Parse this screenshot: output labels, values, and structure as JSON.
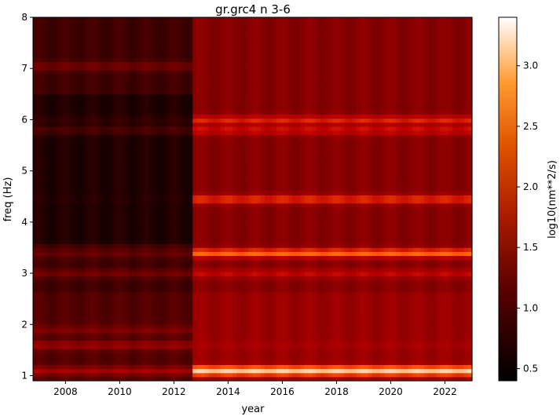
{
  "chart_data": {
    "type": "heatmap",
    "title": "gr.grc4 n 3-6",
    "xlabel": "year",
    "ylabel": "freq (Hz)",
    "xlim": [
      2006.8,
      2023.0
    ],
    "ylim": [
      0.9,
      8.0
    ],
    "x_ticks": [
      2008,
      2010,
      2012,
      2014,
      2016,
      2018,
      2020,
      2022
    ],
    "x_tick_labels": [
      "2008",
      "2010",
      "2012",
      "2014",
      "2016",
      "2018",
      "2020",
      "2022"
    ],
    "y_ticks": [
      1,
      2,
      3,
      4,
      5,
      6,
      7,
      8
    ],
    "y_tick_labels": [
      "1",
      "2",
      "3",
      "4",
      "5",
      "6",
      "7",
      "8"
    ],
    "colorbar": {
      "label": "log10(nm**2/s)",
      "range": [
        0.4,
        3.4
      ],
      "ticks": [
        0.5,
        1.0,
        1.5,
        2.0,
        2.5,
        3.0
      ],
      "tick_labels": [
        "0.5",
        "1.0",
        "1.5",
        "2.0",
        "2.5",
        "3.0"
      ],
      "colormap": "gist_heat"
    },
    "regime_change_year": 2012.7,
    "background_level_before": 0.9,
    "background_level_after": 1.45,
    "bands": [
      {
        "freq": 1.1,
        "level_before": 1.7,
        "level_after": 3.1
      },
      {
        "freq": 1.6,
        "level_before": 1.6,
        "level_after": 1.7
      },
      {
        "freq": 1.9,
        "level_before": 1.4,
        "level_after": 1.5
      },
      {
        "freq": 3.0,
        "level_before": 1.3,
        "level_after": 1.9
      },
      {
        "freq": 3.4,
        "level_before": 1.2,
        "level_after": 2.5
      },
      {
        "freq": 4.45,
        "level_before": 0.7,
        "level_after": 2.2
      },
      {
        "freq": 5.8,
        "level_before": 1.0,
        "level_after": 2.0
      },
      {
        "freq": 6.0,
        "level_before": 0.8,
        "level_after": 2.1
      },
      {
        "freq": 7.05,
        "level_before": 1.3,
        "level_after": 1.3
      }
    ]
  }
}
